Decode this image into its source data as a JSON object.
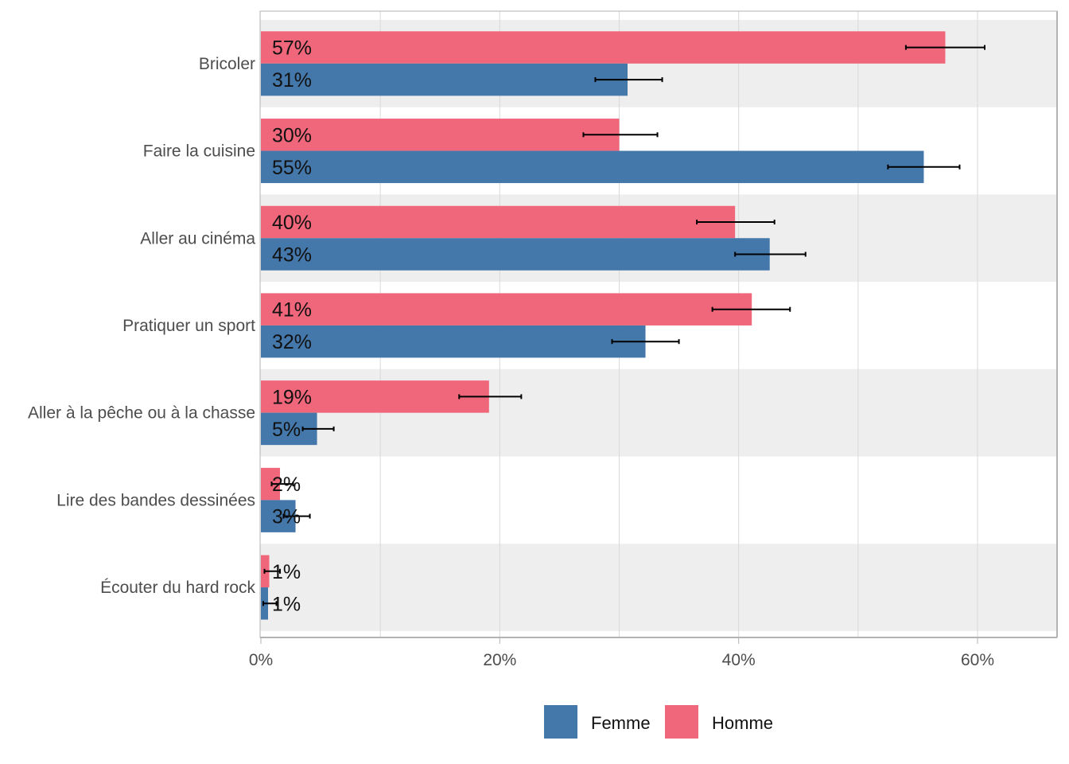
{
  "chart_data": {
    "type": "bar",
    "orientation": "horizontal",
    "title": "",
    "xlabel": "",
    "ylabel": "",
    "xlim": [
      0,
      66.6
    ],
    "x_ticks": [
      0,
      20,
      40,
      60
    ],
    "x_tick_labels": [
      "0%",
      "20%",
      "40%",
      "60%"
    ],
    "minor_gridlines": [
      10,
      30,
      50
    ],
    "grid": true,
    "legend_position": "bottom",
    "categories": [
      "Bricoler",
      "Faire la cuisine",
      "Aller au cinéma",
      "Pratiquer un sport",
      "Aller à la pêche ou à la chasse",
      "Lire des bandes dessinées",
      "Écouter du hard rock"
    ],
    "series": [
      {
        "name": "Homme",
        "color": "#F0667A",
        "values": [
          57.3,
          30.0,
          39.7,
          41.1,
          19.1,
          1.6,
          0.7
        ],
        "labels": [
          "57%",
          "30%",
          "40%",
          "41%",
          "19%",
          "2%",
          "1%"
        ],
        "error_low": [
          54.0,
          27.0,
          36.5,
          37.8,
          16.6,
          0.9,
          0.3
        ],
        "error_high": [
          60.6,
          33.2,
          43.0,
          44.3,
          21.8,
          2.7,
          1.6
        ]
      },
      {
        "name": "Femme",
        "color": "#4477AA",
        "values": [
          30.7,
          55.5,
          42.6,
          32.2,
          4.7,
          2.9,
          0.6
        ],
        "labels": [
          "31%",
          "55%",
          "43%",
          "32%",
          "5%",
          "3%",
          "1%"
        ],
        "error_low": [
          28.0,
          52.5,
          39.7,
          29.4,
          3.5,
          1.9,
          0.2
        ],
        "error_high": [
          33.6,
          58.5,
          45.6,
          35.0,
          6.1,
          4.1,
          1.3
        ]
      }
    ],
    "legend": [
      {
        "name": "Femme",
        "color": "#4477AA"
      },
      {
        "name": "Homme",
        "color": "#F0667A"
      }
    ],
    "band_color": "#EEEEEE",
    "grid_color": "#D9D9D9",
    "axis_color": "#B3B3B3"
  }
}
